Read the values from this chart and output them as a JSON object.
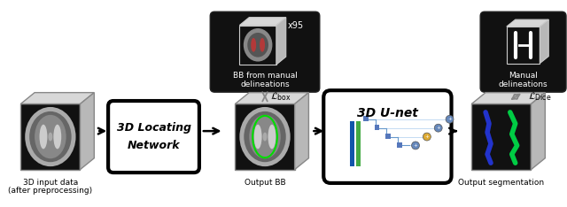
{
  "bg_color": "#ffffff",
  "labels": {
    "input_line1": "3D input data",
    "input_line2": "(after preprocessing)",
    "locating_network_line1": "3D Locating",
    "locating_network_line2": "Network",
    "output_bb": "Output BB",
    "bb_manual_line1": "BB from manual",
    "bb_manual_line2": "delineations",
    "bb_count": "x95",
    "loss_box": "$\\mathcal{L}_{\\mathrm{box}}$",
    "unet": "3D U-net",
    "manual_delin_line1": "Manual",
    "manual_delin_line2": "delineations",
    "loss_dice": "$\\mathcal{L}_{\\mathrm{Dice}}$",
    "output_seg": "Output segmentation"
  }
}
